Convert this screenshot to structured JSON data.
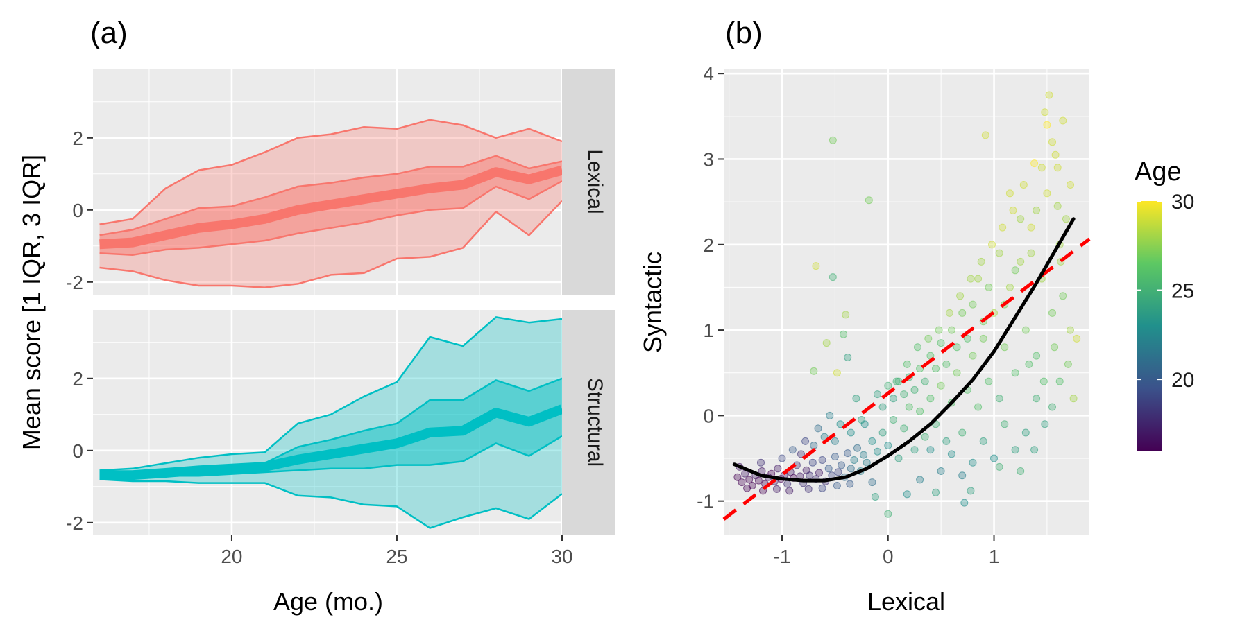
{
  "colors": {
    "panel_bg": "#EBEBEB",
    "grid": "#FFFFFF",
    "strip_bg": "#D9D9D9",
    "lexical": "#F8766D",
    "structural": "#00BFC4",
    "fit_curve": "#000000",
    "fit_line": "#FF0000",
    "tick_text": "#4D4D4D"
  },
  "chart_data": [
    {
      "type": "area",
      "panel_label": "(a)",
      "xlabel": "Age (mo.)",
      "ylabel": "Mean score [1 IQR, 3 IQR]",
      "xlim": [
        15.8,
        30.0
      ],
      "x_ticks": [
        20,
        25,
        30
      ],
      "facets": [
        {
          "strip": "Lexical",
          "color_key": "lexical",
          "ylim": [
            -2.35,
            3.9
          ],
          "y_ticks": [
            -2,
            0,
            2
          ],
          "y_tick_labels": [
            "-2",
            "0",
            "2"
          ],
          "x": [
            16,
            17,
            18,
            19,
            20,
            21,
            22,
            23,
            24,
            25,
            26,
            27,
            28,
            29,
            30
          ],
          "outer_upper": [
            -0.4,
            -0.25,
            0.6,
            1.1,
            1.25,
            1.6,
            2.0,
            2.1,
            2.3,
            2.25,
            2.5,
            2.35,
            2.0,
            2.25,
            1.9
          ],
          "outer_lower": [
            -1.6,
            -1.7,
            -1.95,
            -2.1,
            -2.1,
            -2.15,
            -2.05,
            -1.8,
            -1.75,
            -1.35,
            -1.3,
            -1.05,
            -0.05,
            -0.7,
            0.25
          ],
          "inner_upper": [
            -0.7,
            -0.55,
            -0.25,
            0.05,
            0.1,
            0.35,
            0.65,
            0.75,
            0.9,
            1.0,
            1.2,
            1.2,
            1.5,
            1.15,
            1.35
          ],
          "inner_lower": [
            -1.2,
            -1.25,
            -1.1,
            -1.05,
            -0.95,
            -0.85,
            -0.65,
            -0.5,
            -0.35,
            -0.15,
            0.0,
            0.05,
            0.65,
            0.3,
            0.8
          ],
          "mean": [
            -0.95,
            -0.9,
            -0.7,
            -0.5,
            -0.4,
            -0.25,
            0.0,
            0.15,
            0.3,
            0.45,
            0.6,
            0.7,
            1.05,
            0.85,
            1.1
          ]
        },
        {
          "strip": "Structural",
          "color_key": "structural",
          "ylim": [
            -2.35,
            3.9
          ],
          "y_ticks": [
            -2,
            0,
            2
          ],
          "y_tick_labels": [
            "-2",
            "0",
            "2"
          ],
          "x": [
            16,
            17,
            18,
            19,
            20,
            21,
            22,
            23,
            24,
            25,
            26,
            27,
            28,
            29,
            30
          ],
          "outer_upper": [
            -0.55,
            -0.5,
            -0.35,
            -0.2,
            -0.1,
            -0.05,
            0.75,
            1.0,
            1.5,
            1.9,
            3.15,
            2.9,
            3.7,
            3.55,
            3.65
          ],
          "outer_lower": [
            -0.8,
            -0.85,
            -0.85,
            -0.9,
            -0.9,
            -0.9,
            -1.25,
            -1.3,
            -1.5,
            -1.55,
            -2.15,
            -1.85,
            -1.6,
            -1.9,
            -1.2
          ],
          "inner_upper": [
            -0.6,
            -0.6,
            -0.55,
            -0.5,
            -0.45,
            -0.35,
            0.1,
            0.3,
            0.55,
            0.75,
            1.4,
            1.4,
            1.95,
            1.65,
            2.0
          ],
          "inner_lower": [
            -0.75,
            -0.75,
            -0.7,
            -0.7,
            -0.65,
            -0.6,
            -0.55,
            -0.5,
            -0.5,
            -0.4,
            -0.4,
            -0.3,
            0.2,
            -0.15,
            0.4
          ],
          "mean": [
            -0.68,
            -0.68,
            -0.62,
            -0.55,
            -0.5,
            -0.45,
            -0.25,
            -0.1,
            0.05,
            0.2,
            0.5,
            0.55,
            1.05,
            0.8,
            1.15
          ]
        }
      ]
    },
    {
      "type": "scatter",
      "panel_label": "(b)",
      "xlabel": "Lexical",
      "ylabel": "Syntactic",
      "xlim": [
        -1.55,
        1.9
      ],
      "ylim": [
        -1.4,
        4.05
      ],
      "x_ticks": [
        -1,
        0,
        1
      ],
      "x_tick_labels": [
        "-1",
        "0",
        "1"
      ],
      "y_ticks": [
        -1,
        0,
        1,
        2,
        3,
        4
      ],
      "y_tick_labels": [
        "-1",
        "0",
        "1",
        "2",
        "3",
        "4"
      ],
      "legend": {
        "title": "Age",
        "placement": "right",
        "range": [
          16,
          30
        ],
        "ticks": [
          20,
          25,
          30
        ],
        "tick_labels": [
          "20",
          "25",
          "30"
        ],
        "colors": [
          "#440154",
          "#3B528B",
          "#21908C",
          "#5DC863",
          "#FDE725"
        ]
      },
      "fit_line": {
        "intercept": 0.26,
        "slope": 0.95
      },
      "fit_curve": {
        "x": [
          -1.45,
          -1.2,
          -1.0,
          -0.8,
          -0.6,
          -0.4,
          -0.2,
          0.0,
          0.2,
          0.4,
          0.6,
          0.8,
          1.0,
          1.2,
          1.4,
          1.6,
          1.75
        ],
        "y": [
          -0.57,
          -0.7,
          -0.74,
          -0.76,
          -0.76,
          -0.72,
          -0.62,
          -0.47,
          -0.3,
          -0.1,
          0.15,
          0.42,
          0.75,
          1.15,
          1.55,
          1.98,
          2.3
        ]
      },
      "points": [
        [
          -1.42,
          -0.72,
          16
        ],
        [
          -1.38,
          -0.78,
          16
        ],
        [
          -1.35,
          -0.68,
          17
        ],
        [
          -1.31,
          -0.75,
          16
        ],
        [
          -1.28,
          -0.82,
          16
        ],
        [
          -1.25,
          -0.7,
          17
        ],
        [
          -1.22,
          -0.76,
          16
        ],
        [
          -1.19,
          -0.65,
          17
        ],
        [
          -1.16,
          -0.8,
          16
        ],
        [
          -1.13,
          -0.72,
          17
        ],
        [
          -1.1,
          -0.68,
          16
        ],
        [
          -1.07,
          -0.77,
          17
        ],
        [
          -1.04,
          -0.62,
          17
        ],
        [
          -1.01,
          -0.74,
          16
        ],
        [
          -0.98,
          -0.7,
          17
        ],
        [
          -0.95,
          -0.8,
          18
        ],
        [
          -0.92,
          -0.66,
          17
        ],
        [
          -0.89,
          -0.73,
          16
        ],
        [
          -0.86,
          -0.58,
          18
        ],
        [
          -0.83,
          -0.71,
          17
        ],
        [
          -0.8,
          -0.79,
          18
        ],
        [
          -0.77,
          -0.64,
          17
        ],
        [
          -0.74,
          -0.7,
          18
        ],
        [
          -0.71,
          -0.55,
          19
        ],
        [
          -0.68,
          -0.74,
          18
        ],
        [
          -0.65,
          -0.67,
          17
        ],
        [
          -0.62,
          -0.52,
          19
        ],
        [
          -0.59,
          -0.77,
          18
        ],
        [
          -0.56,
          -0.62,
          20
        ],
        [
          -0.53,
          -0.7,
          19
        ],
        [
          -0.5,
          -0.48,
          20
        ],
        [
          -0.47,
          -0.66,
          19
        ],
        [
          -0.44,
          -0.58,
          20
        ],
        [
          -0.41,
          -0.72,
          21
        ],
        [
          -0.38,
          -0.44,
          20
        ],
        [
          -0.35,
          -0.62,
          21
        ],
        [
          -0.32,
          -0.52,
          22
        ],
        [
          -0.29,
          -0.38,
          21
        ],
        [
          -0.26,
          -0.65,
          22
        ],
        [
          -0.23,
          -0.46,
          22
        ],
        [
          -1.2,
          -0.55,
          18
        ],
        [
          -1.0,
          -0.5,
          19
        ],
        [
          -0.9,
          -0.4,
          20
        ],
        [
          -0.7,
          -0.35,
          21
        ],
        [
          -0.6,
          -0.25,
          22
        ],
        [
          -0.5,
          -0.3,
          22
        ],
        [
          -0.45,
          -0.1,
          23
        ],
        [
          -0.35,
          -0.2,
          23
        ],
        [
          -0.25,
          -0.05,
          24
        ],
        [
          -0.15,
          -0.3,
          23
        ],
        [
          -0.2,
          -0.55,
          22
        ],
        [
          -0.1,
          -0.42,
          23
        ],
        [
          -0.05,
          -0.2,
          24
        ],
        [
          0.0,
          -0.35,
          23
        ],
        [
          0.05,
          -0.05,
          25
        ],
        [
          0.1,
          -0.5,
          24
        ],
        [
          0.15,
          -0.15,
          25
        ],
        [
          0.2,
          0.1,
          26
        ],
        [
          0.25,
          -0.4,
          24
        ],
        [
          0.3,
          0.05,
          26
        ],
        [
          0.35,
          -0.25,
          25
        ],
        [
          0.4,
          0.2,
          26
        ],
        [
          0.45,
          -0.1,
          25
        ],
        [
          0.5,
          0.35,
          27
        ],
        [
          0.55,
          -0.3,
          24
        ],
        [
          0.6,
          0.15,
          26
        ],
        [
          0.65,
          0.5,
          27
        ],
        [
          0.7,
          -0.2,
          25
        ],
        [
          0.75,
          0.3,
          26
        ],
        [
          0.8,
          0.7,
          27
        ],
        [
          0.85,
          0.1,
          26
        ],
        [
          0.9,
          0.9,
          27
        ],
        [
          0.95,
          0.4,
          26
        ],
        [
          1.0,
          1.2,
          28
        ],
        [
          1.05,
          0.2,
          25
        ],
        [
          1.1,
          0.8,
          27
        ],
        [
          1.15,
          1.5,
          28
        ],
        [
          1.2,
          0.5,
          26
        ],
        [
          1.25,
          1.8,
          28
        ],
        [
          1.3,
          1.0,
          27
        ],
        [
          1.35,
          2.2,
          29
        ],
        [
          1.4,
          0.7,
          26
        ],
        [
          1.45,
          1.6,
          28
        ],
        [
          1.5,
          2.6,
          29
        ],
        [
          1.55,
          1.2,
          27
        ],
        [
          1.6,
          2.9,
          29
        ],
        [
          1.62,
          2.0,
          28
        ],
        [
          1.65,
          1.4,
          27
        ],
        [
          1.55,
          3.2,
          29
        ],
        [
          1.5,
          3.4,
          30
        ],
        [
          1.45,
          2.9,
          29
        ],
        [
          1.4,
          2.4,
          28
        ],
        [
          1.35,
          1.9,
          28
        ],
        [
          1.25,
          2.3,
          28
        ],
        [
          1.2,
          1.7,
          27
        ],
        [
          1.15,
          2.6,
          29
        ],
        [
          1.1,
          1.3,
          27
        ],
        [
          1.05,
          1.9,
          28
        ],
        [
          0.95,
          1.5,
          27
        ],
        [
          0.9,
          1.1,
          27
        ],
        [
          0.85,
          1.6,
          28
        ],
        [
          0.8,
          1.3,
          27
        ],
        [
          0.75,
          0.9,
          26
        ],
        [
          0.7,
          1.2,
          27
        ],
        [
          0.65,
          0.8,
          26
        ],
        [
          0.6,
          1.0,
          27
        ],
        [
          0.55,
          0.6,
          26
        ],
        [
          0.5,
          0.85,
          26
        ],
        [
          0.45,
          0.55,
          26
        ],
        [
          0.4,
          0.7,
          26
        ],
        [
          0.35,
          0.4,
          25
        ],
        [
          0.3,
          0.55,
          26
        ],
        [
          0.25,
          0.3,
          25
        ],
        [
          0.2,
          0.45,
          25
        ],
        [
          0.15,
          0.25,
          25
        ],
        [
          0.1,
          0.4,
          25
        ],
        [
          0.05,
          0.2,
          24
        ],
        [
          0.0,
          0.35,
          25
        ],
        [
          -0.05,
          0.1,
          24
        ],
        [
          -0.1,
          0.25,
          24
        ],
        [
          1.52,
          3.75,
          29
        ],
        [
          1.48,
          3.55,
          29
        ],
        [
          1.58,
          3.05,
          29
        ],
        [
          1.65,
          3.45,
          29
        ],
        [
          1.6,
          2.45,
          28
        ],
        [
          1.62,
          0.4,
          26
        ],
        [
          1.55,
          0.1,
          25
        ],
        [
          1.48,
          -0.1,
          24
        ],
        [
          1.4,
          0.2,
          25
        ],
        [
          1.3,
          -0.2,
          24
        ],
        [
          1.2,
          -0.4,
          24
        ],
        [
          1.1,
          -0.1,
          25
        ],
        [
          1.0,
          -0.5,
          23
        ],
        [
          0.9,
          -0.3,
          24
        ],
        [
          0.8,
          -0.55,
          23
        ],
        [
          0.7,
          -0.7,
          22
        ],
        [
          0.6,
          -0.45,
          23
        ],
        [
          0.5,
          -0.65,
          22
        ],
        [
          0.4,
          -0.4,
          23
        ],
        [
          0.3,
          -0.75,
          22
        ],
        [
          -0.52,
          3.22,
          27
        ],
        [
          -0.18,
          2.52,
          27
        ],
        [
          -0.68,
          1.75,
          29
        ],
        [
          -0.52,
          1.62,
          25
        ],
        [
          -0.38,
          0.68,
          24
        ],
        [
          -0.42,
          0.95,
          26
        ],
        [
          -0.58,
          0.85,
          28
        ],
        [
          -0.7,
          0.52,
          27
        ],
        [
          -0.48,
          0.5,
          29
        ],
        [
          -0.4,
          1.18,
          28
        ],
        [
          -0.78,
          -0.3,
          19
        ],
        [
          -0.82,
          -0.45,
          18
        ],
        [
          -0.66,
          -0.15,
          21
        ],
        [
          -0.55,
          0.0,
          22
        ],
        [
          -0.3,
          0.2,
          24
        ],
        [
          -0.22,
          -0.1,
          23
        ],
        [
          0.08,
          0.4,
          25
        ],
        [
          0.18,
          0.6,
          26
        ],
        [
          0.28,
          0.8,
          26
        ],
        [
          0.38,
          0.9,
          27
        ],
        [
          0.48,
          1.0,
          27
        ],
        [
          0.58,
          1.2,
          28
        ],
        [
          0.68,
          1.4,
          28
        ],
        [
          0.78,
          1.6,
          28
        ],
        [
          0.88,
          1.8,
          28
        ],
        [
          0.98,
          2.0,
          29
        ],
        [
          1.08,
          2.2,
          29
        ],
        [
          1.18,
          2.4,
          29
        ],
        [
          1.28,
          2.7,
          29
        ],
        [
          1.38,
          2.95,
          30
        ],
        [
          0.92,
          3.28,
          29
        ],
        [
          0.72,
          -1.02,
          23
        ],
        [
          0.78,
          -0.88,
          24
        ],
        [
          0.0,
          -1.15,
          25
        ],
        [
          -0.12,
          -0.95,
          24
        ],
        [
          0.18,
          -0.92,
          23
        ],
        [
          0.45,
          -0.9,
          24
        ],
        [
          1.05,
          -0.6,
          25
        ],
        [
          1.25,
          -0.65,
          25
        ],
        [
          1.38,
          -0.4,
          24
        ],
        [
          -1.4,
          -0.6,
          17
        ],
        [
          -1.33,
          -0.85,
          16
        ],
        [
          -1.18,
          -0.88,
          16
        ],
        [
          -1.05,
          -0.86,
          17
        ],
        [
          -0.93,
          -0.88,
          17
        ],
        [
          -0.75,
          -0.86,
          18
        ],
        [
          -0.62,
          -0.85,
          19
        ],
        [
          -0.48,
          -0.82,
          20
        ],
        [
          -0.36,
          -0.8,
          20
        ],
        [
          -0.15,
          -0.78,
          21
        ],
        [
          1.72,
          1.0,
          28
        ],
        [
          1.78,
          0.9,
          29
        ],
        [
          1.75,
          0.2,
          28
        ],
        [
          1.7,
          0.6,
          27
        ],
        [
          1.68,
          2.3,
          28
        ],
        [
          1.72,
          2.7,
          29
        ],
        [
          1.63,
          1.8,
          28
        ],
        [
          1.57,
          0.8,
          27
        ],
        [
          1.47,
          0.4,
          26
        ],
        [
          1.33,
          0.6,
          26
        ]
      ]
    }
  ]
}
